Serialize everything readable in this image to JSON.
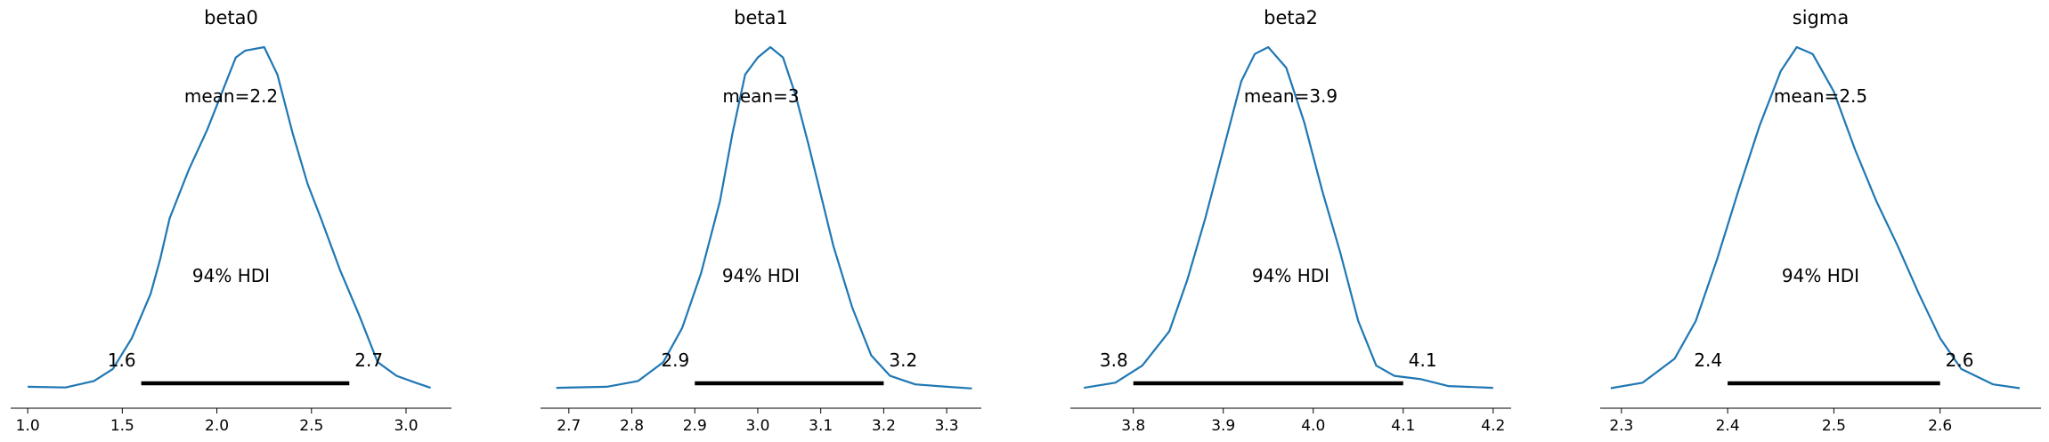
{
  "chart_data": [
    {
      "type": "area",
      "title": "beta0",
      "mean_label": "mean=2.2",
      "hdi_label": "94% HDI",
      "hdi": [
        1.6,
        2.7
      ],
      "hdi_low_label": "1.6",
      "hdi_high_label": "2.7",
      "xlim": [
        0.91,
        3.24
      ],
      "xticks": [
        1.0,
        1.5,
        2.0,
        2.5,
        3.0
      ],
      "xtick_labels": [
        "1.0",
        "1.5",
        "2.0",
        "2.5",
        "3.0"
      ],
      "density": {
        "x": [
          1.0,
          1.2,
          1.35,
          1.45,
          1.55,
          1.65,
          1.7,
          1.75,
          1.85,
          1.95,
          2.05,
          2.1,
          2.15,
          2.25,
          2.32,
          2.4,
          2.48,
          2.55,
          2.65,
          2.75,
          2.85,
          2.95,
          3.05,
          3.13
        ],
        "y": [
          0.008,
          0.006,
          0.025,
          0.06,
          0.15,
          0.28,
          0.38,
          0.5,
          0.64,
          0.76,
          0.9,
          0.97,
          0.99,
          1.0,
          0.92,
          0.75,
          0.6,
          0.5,
          0.35,
          0.22,
          0.08,
          0.04,
          0.02,
          0.005
        ]
      }
    },
    {
      "type": "area",
      "title": "beta1",
      "mean_label": "mean=3",
      "hdi_label": "94% HDI",
      "hdi": [
        2.9,
        3.2
      ],
      "hdi_low_label": "2.9",
      "hdi_high_label": "3.2",
      "xlim": [
        2.655,
        3.355
      ],
      "xticks": [
        2.7,
        2.8,
        2.9,
        3.0,
        3.1,
        3.2,
        3.3
      ],
      "xtick_labels": [
        "2.7",
        "2.8",
        "2.9",
        "3.0",
        "3.1",
        "3.2",
        "3.3"
      ],
      "density": {
        "x": [
          2.68,
          2.76,
          2.81,
          2.85,
          2.88,
          2.91,
          2.94,
          2.96,
          2.98,
          3.0,
          3.02,
          3.04,
          3.06,
          3.08,
          3.1,
          3.12,
          3.15,
          3.18,
          3.21,
          3.25,
          3.3,
          3.34
        ],
        "y": [
          0.005,
          0.008,
          0.025,
          0.08,
          0.18,
          0.34,
          0.55,
          0.75,
          0.92,
          0.97,
          1.0,
          0.97,
          0.86,
          0.72,
          0.57,
          0.42,
          0.24,
          0.1,
          0.04,
          0.015,
          0.008,
          0.003
        ]
      }
    },
    {
      "type": "area",
      "title": "beta2",
      "mean_label": "mean=3.9",
      "hdi_label": "94% HDI",
      "hdi": [
        3.8,
        4.1
      ],
      "hdi_low_label": "3.8",
      "hdi_high_label": "4.1",
      "xlim": [
        3.73,
        4.22
      ],
      "xticks": [
        3.8,
        3.9,
        4.0,
        4.1,
        4.2
      ],
      "xtick_labels": [
        "3.8",
        "3.9",
        "4.0",
        "4.1",
        "4.2"
      ],
      "density": {
        "x": [
          3.745,
          3.78,
          3.81,
          3.84,
          3.86,
          3.88,
          3.9,
          3.92,
          3.935,
          3.95,
          3.97,
          3.99,
          4.01,
          4.03,
          4.05,
          4.07,
          4.09,
          4.12,
          4.15,
          4.2
        ],
        "y": [
          0.005,
          0.02,
          0.07,
          0.17,
          0.32,
          0.5,
          0.7,
          0.9,
          0.98,
          1.0,
          0.94,
          0.78,
          0.58,
          0.4,
          0.2,
          0.07,
          0.04,
          0.03,
          0.01,
          0.005
        ]
      }
    },
    {
      "type": "area",
      "title": "sigma",
      "mean_label": "mean=2.5",
      "hdi_label": "94% HDI",
      "hdi": [
        2.4,
        2.6
      ],
      "hdi_low_label": "2.4",
      "hdi_high_label": "2.6",
      "xlim": [
        2.28,
        2.695
      ],
      "xticks": [
        2.3,
        2.4,
        2.5,
        2.6
      ],
      "xtick_labels": [
        "2.3",
        "2.4",
        "2.5",
        "2.6"
      ],
      "density": {
        "x": [
          2.29,
          2.32,
          2.35,
          2.37,
          2.39,
          2.41,
          2.43,
          2.45,
          2.465,
          2.48,
          2.5,
          2.52,
          2.54,
          2.56,
          2.58,
          2.6,
          2.62,
          2.65,
          2.675
        ],
        "y": [
          0.004,
          0.02,
          0.09,
          0.2,
          0.38,
          0.58,
          0.77,
          0.93,
          1.0,
          0.98,
          0.87,
          0.7,
          0.55,
          0.42,
          0.28,
          0.15,
          0.06,
          0.015,
          0.004
        ]
      }
    }
  ]
}
